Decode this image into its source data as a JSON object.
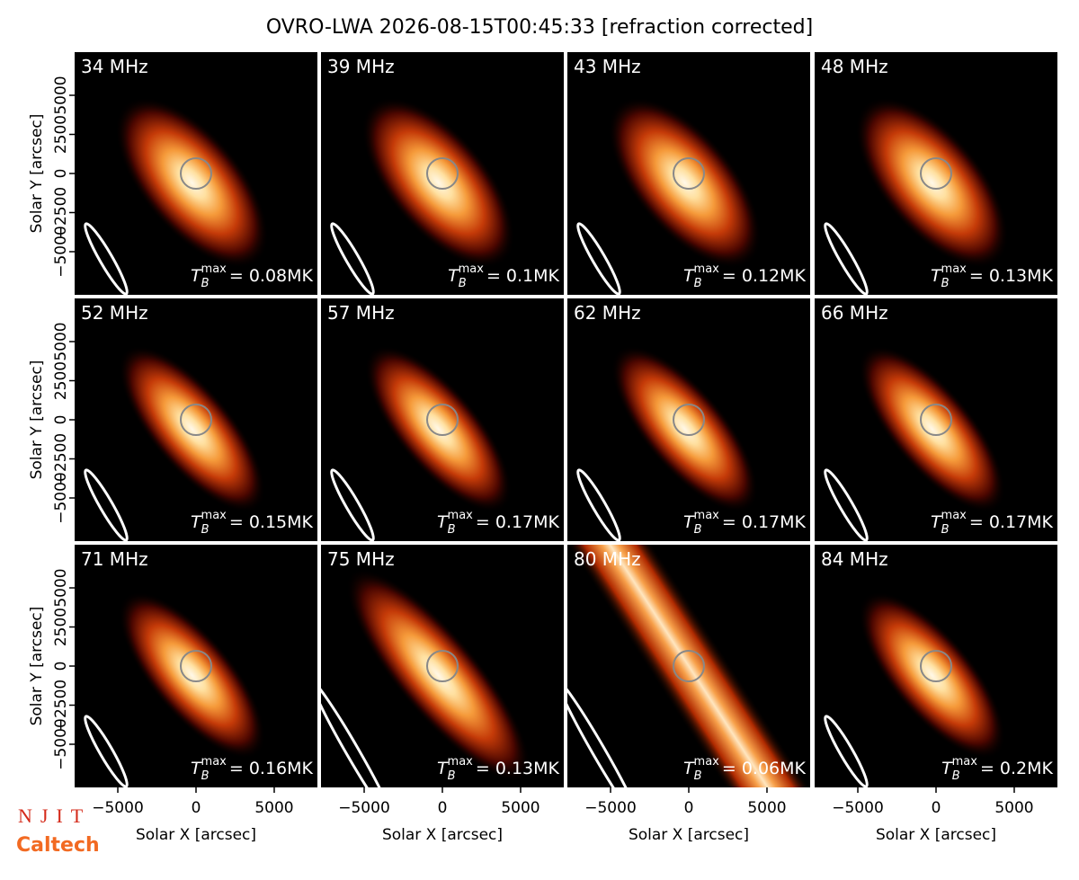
{
  "chart_data": {
    "type": "image_grid",
    "title": "OVRO-LWA 2026-08-15T00:45:33 [refraction corrected]",
    "xlabel": "Solar X [arcsec]",
    "ylabel": "Solar Y [arcsec]",
    "xlim": [
      -7760,
      7760
    ],
    "ylim": [
      -7760,
      7760
    ],
    "xticks": [
      {
        "value": -5000,
        "label": "−5000"
      },
      0,
      5000
    ],
    "yticks": [
      {
        "value": -5000,
        "label": "−5000"
      },
      {
        "value": -2500,
        "label": "−2500"
      },
      0,
      2500,
      5000
    ],
    "tb_symbol": "T",
    "tb_sub": "B",
    "tb_sup": "max",
    "panels": [
      {
        "label": "34 MHz",
        "tb_max": "= 0.08MK"
      },
      {
        "label": "39 MHz",
        "tb_max": "= 0.1MK"
      },
      {
        "label": "43 MHz",
        "tb_max": "= 0.12MK"
      },
      {
        "label": "48 MHz",
        "tb_max": "= 0.13MK"
      },
      {
        "label": "52 MHz",
        "tb_max": "= 0.15MK"
      },
      {
        "label": "57 MHz",
        "tb_max": "= 0.17MK"
      },
      {
        "label": "62 MHz",
        "tb_max": "= 0.17MK"
      },
      {
        "label": "66 MHz",
        "tb_max": "= 0.17MK"
      },
      {
        "label": "71 MHz",
        "tb_max": "= 0.16MK"
      },
      {
        "label": "75 MHz",
        "tb_max": "= 0.13MK"
      },
      {
        "label": "80 MHz",
        "tb_max": "= 0.06MK"
      },
      {
        "label": "84 MHz",
        "tb_max": "= 0.2MK"
      }
    ]
  },
  "logos": {
    "top": "NJIT",
    "bottom": "Caltech"
  }
}
